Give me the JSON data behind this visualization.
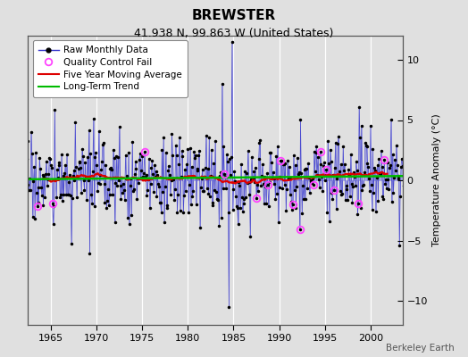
{
  "title": "BREWSTER",
  "subtitle": "41.938 N, 99.863 W (United States)",
  "ylabel": "Temperature Anomaly (°C)",
  "xlabel_note": "Berkeley Earth",
  "ylim": [
    -12,
    12
  ],
  "yticks": [
    -10,
    -5,
    0,
    5,
    10
  ],
  "year_start": 1962.0,
  "year_end": 2003.0,
  "xlim_left": 1962.5,
  "xlim_right": 2003.5,
  "xticks": [
    1965,
    1970,
    1975,
    1980,
    1985,
    1990,
    1995,
    2000
  ],
  "bg_color": "#e0e0e0",
  "plot_bg_color": "#e0e0e0",
  "grid_color": "#ffffff",
  "line_color": "#3333cc",
  "stem_color": "#6666dd",
  "ma_color": "#dd0000",
  "trend_color": "#00bb00",
  "qc_color": "#ff44ff",
  "title_fontsize": 11,
  "subtitle_fontsize": 9,
  "tick_fontsize": 8,
  "ylabel_fontsize": 8,
  "legend_fontsize": 7.5,
  "seed": 17
}
